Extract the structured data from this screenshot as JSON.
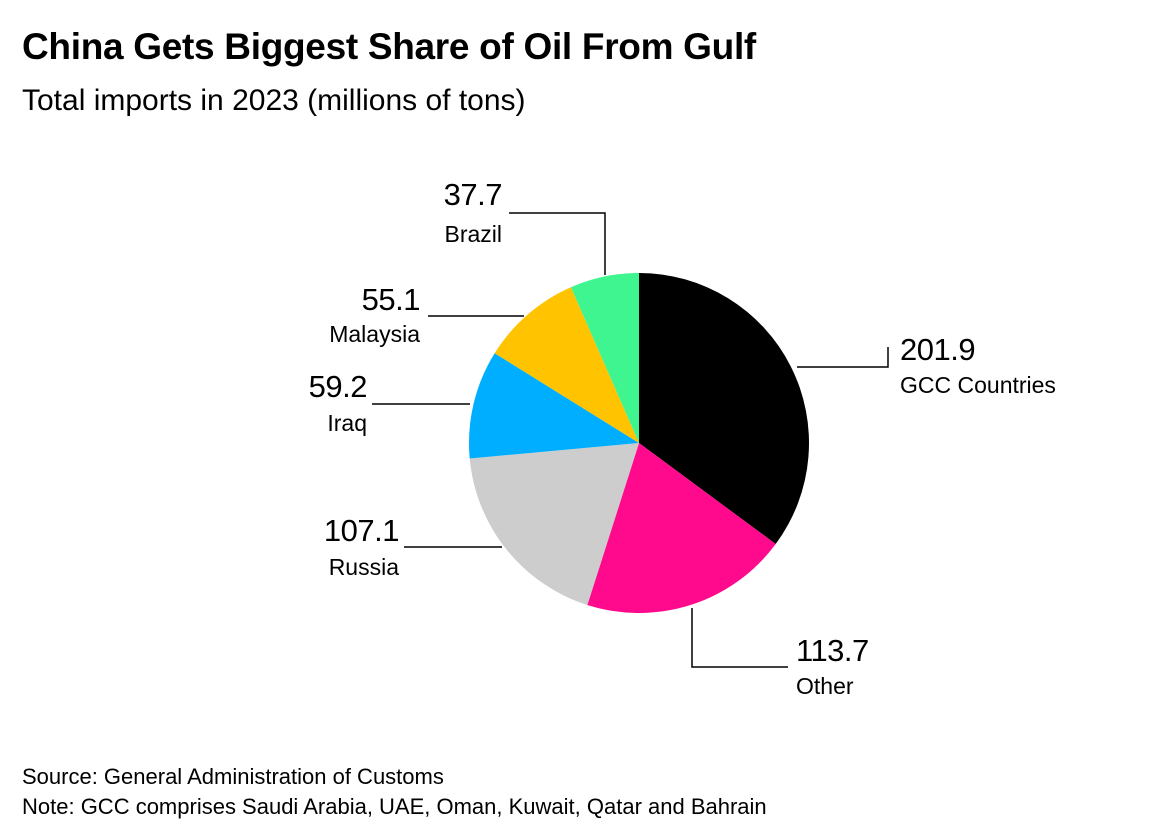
{
  "chart_data": {
    "type": "pie",
    "title": "China Gets Biggest Share of Oil From Gulf",
    "subtitle": "Total imports in 2023 (millions of tons)",
    "slices": [
      {
        "label": "GCC Countries",
        "value": 201.9,
        "value_label": "201.9",
        "color": "#000000"
      },
      {
        "label": "Other",
        "value": 113.7,
        "value_label": "113.7",
        "color": "#FF0A8C"
      },
      {
        "label": "Russia",
        "value": 107.1,
        "value_label": "107.1",
        "color": "#CDCDCD"
      },
      {
        "label": "Iraq",
        "value": 59.2,
        "value_label": "59.2",
        "color": "#00AEFF"
      },
      {
        "label": "Malaysia",
        "value": 55.1,
        "value_label": "55.1",
        "color": "#FFC300"
      },
      {
        "label": "Brazil",
        "value": 37.7,
        "value_label": "37.7",
        "color": "#3FF58F"
      }
    ]
  },
  "footer": {
    "source": "Source: General Administration of Customs",
    "note": "Note: GCC comprises Saudi Arabia, UAE, Oman, Kuwait, Qatar and Bahrain"
  }
}
